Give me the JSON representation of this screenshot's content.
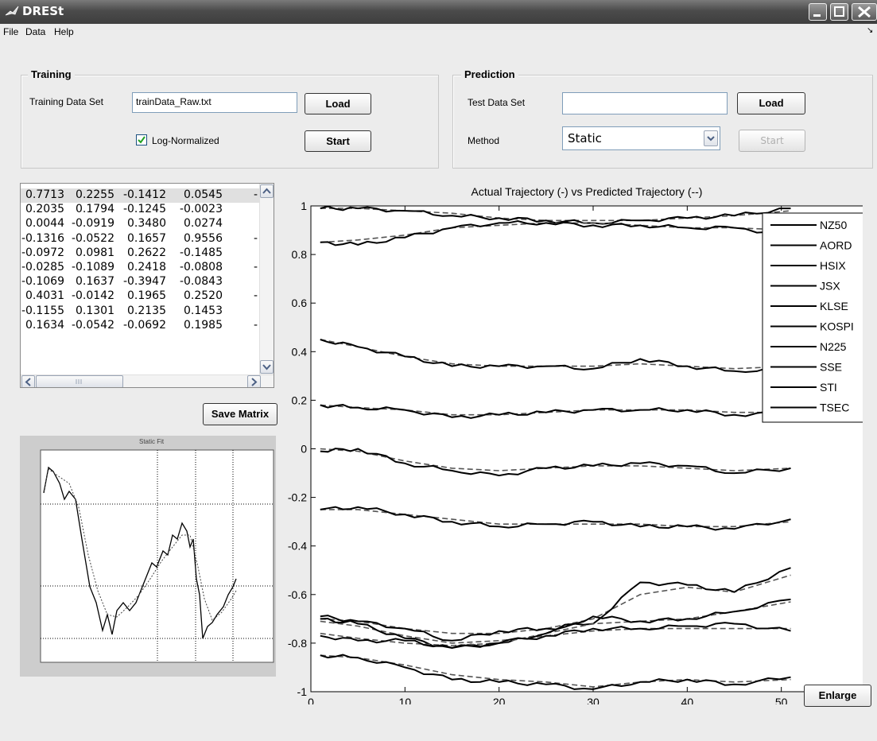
{
  "window": {
    "title": "DRESt"
  },
  "menu": [
    "File",
    "Data",
    "Help"
  ],
  "training": {
    "title": "Training",
    "data_set_label": "Training Data Set",
    "data_set_value": "trainData_Raw.txt",
    "load_label": "Load",
    "log_normalized_label": "Log-Normalized",
    "log_normalized_checked": true,
    "start_label": "Start"
  },
  "prediction": {
    "title": "Prediction",
    "test_data_label": "Test Data Set",
    "test_data_value": "",
    "load_label": "Load",
    "method_label": "Method",
    "method_value": "Static",
    "start_label": "Start"
  },
  "matrix": {
    "rows": [
      [
        "0.7713",
        "0.2255",
        "-0.1412",
        "0.0545",
        "-"
      ],
      [
        "0.2035",
        "0.1794",
        "-0.1245",
        "-0.0023",
        ""
      ],
      [
        "0.0044",
        "-0.0919",
        "0.3480",
        "0.0274",
        ""
      ],
      [
        "-0.1316",
        "-0.0522",
        "0.1657",
        "0.9556",
        "-"
      ],
      [
        "-0.0972",
        "0.0981",
        "0.2622",
        "-0.1485",
        ""
      ],
      [
        "-0.0285",
        "-0.1089",
        "0.2418",
        "-0.0808",
        "-"
      ],
      [
        "-0.1069",
        "0.1637",
        "-0.3947",
        "-0.0843",
        ""
      ],
      [
        "0.4031",
        "-0.0142",
        "0.1965",
        "0.2520",
        "-"
      ],
      [
        "-0.1155",
        "0.1301",
        "0.2135",
        "0.1453",
        ""
      ],
      [
        "0.1634",
        "-0.0542",
        "-0.0692",
        "0.1985",
        "-"
      ]
    ],
    "save_label": "Save Matrix"
  },
  "small_chart": {
    "title": "Static Fit"
  },
  "enlarge_label": "Enlarge",
  "chart_data": {
    "type": "line",
    "title": "Actual Trajectory (-) vs Predicted Trajectory (--)",
    "xlim": [
      0,
      60
    ],
    "ylim": [
      -1,
      1
    ],
    "xticks": [
      "0",
      "10",
      "20",
      "30",
      "40",
      "50",
      "60"
    ],
    "yticks": [
      "1",
      "0.8",
      "0.6",
      "0.4",
      "0.2",
      "0",
      "-0.2",
      "-0.4",
      "-0.6",
      "-0.8",
      "-1"
    ],
    "legend_position": "top-right",
    "series": [
      {
        "name": "NZ50",
        "x": [
          1,
          5,
          10,
          15,
          20,
          25,
          30,
          35,
          40,
          45,
          51
        ],
        "actual": [
          0.99,
          0.99,
          0.98,
          0.96,
          0.95,
          0.94,
          0.93,
          0.94,
          0.95,
          0.96,
          0.99
        ],
        "predicted": [
          0.99,
          0.99,
          0.98,
          0.97,
          0.95,
          0.94,
          0.94,
          0.94,
          0.95,
          0.96,
          0.98
        ]
      },
      {
        "name": "AORD",
        "x": [
          1,
          5,
          10,
          15,
          20,
          25,
          30,
          35,
          40,
          45,
          51
        ],
        "actual": [
          0.85,
          0.84,
          0.87,
          0.91,
          0.93,
          0.93,
          0.92,
          0.92,
          0.91,
          0.91,
          0.88
        ],
        "predicted": [
          0.85,
          0.86,
          0.88,
          0.91,
          0.92,
          0.93,
          0.93,
          0.92,
          0.91,
          0.91,
          0.9
        ]
      },
      {
        "name": "HSIX",
        "x": [
          1,
          5,
          10,
          15,
          20,
          25,
          30,
          35,
          40,
          45,
          51
        ],
        "actual": [
          0.45,
          0.42,
          0.38,
          0.34,
          0.34,
          0.34,
          0.33,
          0.37,
          0.34,
          0.32,
          0.33
        ],
        "predicted": [
          0.45,
          0.42,
          0.38,
          0.35,
          0.34,
          0.34,
          0.34,
          0.35,
          0.34,
          0.33,
          0.34
        ]
      },
      {
        "name": "JSX",
        "x": [
          1,
          5,
          10,
          15,
          20,
          25,
          30,
          35,
          40,
          45,
          51
        ],
        "actual": [
          0.18,
          0.17,
          0.16,
          0.13,
          0.14,
          0.15,
          0.16,
          0.16,
          0.16,
          0.14,
          0.15
        ],
        "predicted": [
          0.18,
          0.17,
          0.16,
          0.14,
          0.14,
          0.15,
          0.16,
          0.16,
          0.16,
          0.15,
          0.15
        ]
      },
      {
        "name": "KLSE",
        "x": [
          1,
          5,
          10,
          15,
          20,
          25,
          30,
          35,
          40,
          45,
          51
        ],
        "actual": [
          -0.01,
          0.0,
          -0.06,
          -0.09,
          -0.11,
          -0.08,
          -0.07,
          -0.06,
          -0.07,
          -0.1,
          -0.08
        ],
        "predicted": [
          0.0,
          -0.01,
          -0.05,
          -0.08,
          -0.09,
          -0.08,
          -0.07,
          -0.07,
          -0.08,
          -0.09,
          -0.08
        ]
      },
      {
        "name": "KOSPI",
        "x": [
          1,
          5,
          10,
          15,
          20,
          25,
          30,
          35,
          40,
          45,
          51
        ],
        "actual": [
          -0.25,
          -0.24,
          -0.27,
          -0.3,
          -0.32,
          -0.31,
          -0.3,
          -0.32,
          -0.32,
          -0.33,
          -0.29
        ],
        "predicted": [
          -0.25,
          -0.25,
          -0.27,
          -0.29,
          -0.31,
          -0.31,
          -0.31,
          -0.31,
          -0.32,
          -0.32,
          -0.3
        ]
      },
      {
        "name": "N225",
        "x": [
          1,
          5,
          10,
          15,
          20,
          25,
          30,
          35,
          40,
          45,
          51
        ],
        "actual": [
          -0.69,
          -0.71,
          -0.74,
          -0.79,
          -0.75,
          -0.74,
          -0.72,
          -0.55,
          -0.56,
          -0.59,
          -0.49
        ],
        "predicted": [
          -0.7,
          -0.71,
          -0.74,
          -0.76,
          -0.76,
          -0.74,
          -0.7,
          -0.6,
          -0.57,
          -0.59,
          -0.52
        ]
      },
      {
        "name": "SSE",
        "x": [
          1,
          5,
          10,
          15,
          20,
          25,
          30,
          35,
          40,
          45,
          51
        ],
        "actual": [
          -0.7,
          -0.72,
          -0.78,
          -0.82,
          -0.8,
          -0.77,
          -0.74,
          -0.74,
          -0.73,
          -0.72,
          -0.75
        ],
        "predicted": [
          -0.71,
          -0.73,
          -0.77,
          -0.8,
          -0.79,
          -0.77,
          -0.75,
          -0.74,
          -0.74,
          -0.74,
          -0.74
        ]
      },
      {
        "name": "STI",
        "x": [
          1,
          5,
          10,
          15,
          20,
          25,
          30,
          35,
          40,
          45,
          51
        ],
        "actual": [
          -0.77,
          -0.79,
          -0.79,
          -0.82,
          -0.8,
          -0.76,
          -0.69,
          -0.71,
          -0.7,
          -0.67,
          -0.62
        ],
        "predicted": [
          -0.76,
          -0.78,
          -0.8,
          -0.81,
          -0.8,
          -0.76,
          -0.72,
          -0.71,
          -0.7,
          -0.67,
          -0.63
        ]
      },
      {
        "name": "TSEC",
        "x": [
          1,
          5,
          10,
          15,
          20,
          25,
          30,
          35,
          40,
          45,
          51
        ],
        "actual": [
          -0.85,
          -0.86,
          -0.9,
          -0.95,
          -0.96,
          -0.97,
          -0.99,
          -0.96,
          -0.95,
          -0.97,
          -0.94
        ],
        "predicted": [
          -0.85,
          -0.86,
          -0.89,
          -0.93,
          -0.95,
          -0.96,
          -0.98,
          -0.96,
          -0.95,
          -0.96,
          -0.95
        ]
      }
    ]
  }
}
